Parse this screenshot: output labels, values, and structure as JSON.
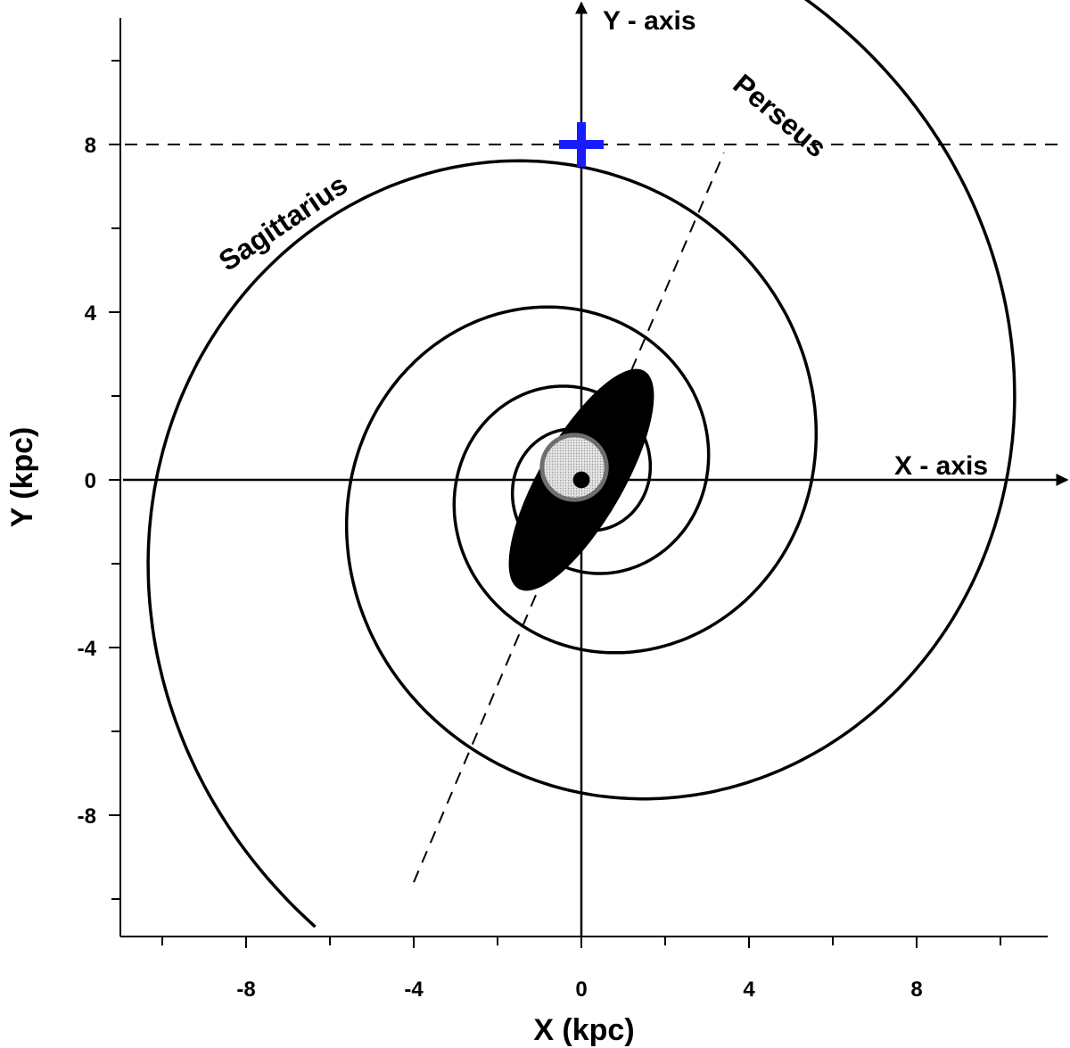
{
  "chart_data": {
    "type": "scatter",
    "title": "",
    "xlabel": "X (kpc)",
    "ylabel": "Y (kpc)",
    "xlim": [
      -11,
      11
    ],
    "ylim": [
      -11,
      11
    ],
    "x_ticks": [
      -8,
      -4,
      0,
      4,
      8
    ],
    "y_ticks": [
      -8,
      -4,
      0,
      4,
      8
    ],
    "x_tick_labels": [
      "-8",
      "-4",
      "0",
      "4",
      "8"
    ],
    "y_tick_labels": [
      "-8",
      "-4",
      "0",
      "4",
      "8"
    ],
    "x_minor_step": 2,
    "y_minor_step": 2,
    "grid": false,
    "annotations": {
      "x_axis": "X - axis",
      "y_axis": "Y - axis"
    },
    "arm_labels": [
      "Sagittarius",
      "Perseus"
    ],
    "sun_position": {
      "x": 0,
      "y": 8,
      "color": "#1a1aff"
    },
    "reference_line_y": 8,
    "bar": {
      "semi_major": 3,
      "semi_minor": 1,
      "angle_deg": 60,
      "color": "#000000"
    },
    "bulge": {
      "radius": 1,
      "fill": "#d4d4d4",
      "stroke": "#6e6e6e"
    },
    "center": {
      "x": 0,
      "y": 0,
      "radius": 0.2,
      "color": "#000000"
    },
    "dashed_bar_axis": {
      "x1": -4,
      "y1": -9.6,
      "x2": 3.4,
      "y2": 7.8
    },
    "spiral_arms": [
      {
        "name": "Sagittarius",
        "a": 0.875,
        "b": 0.195,
        "theta_start": 0.7,
        "theta_end": 13.8
      },
      {
        "name": "Perseus",
        "a": 0.875,
        "b": 0.195,
        "theta_start": 0.7,
        "theta_end": 13.6,
        "rotation": 3.14159
      }
    ]
  }
}
